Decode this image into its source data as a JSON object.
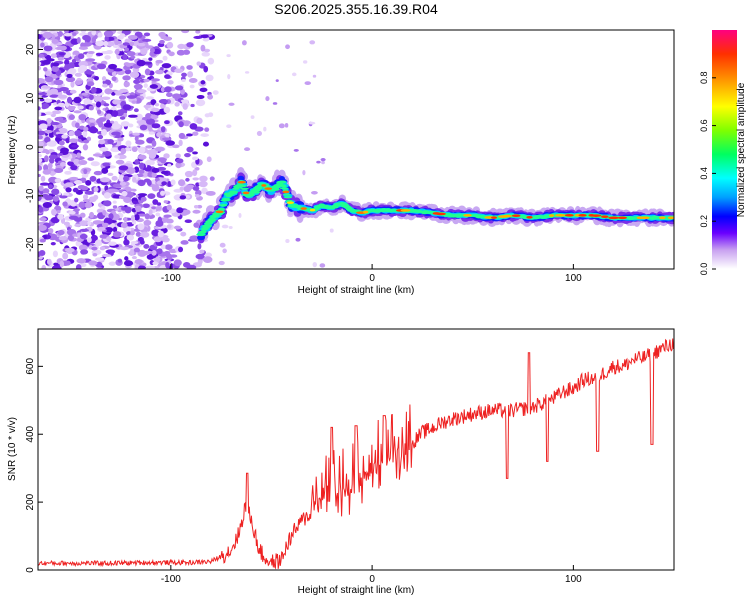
{
  "chart_data": [
    {
      "type": "heatmap",
      "title": "S206.2025.355.16.39.R04",
      "xlabel": "Height of straight line (km)",
      "ylabel": "Frequency (Hz)",
      "xlim": [
        -166,
        150
      ],
      "ylim": [
        -25,
        24
      ],
      "xticks": [
        -100,
        0,
        100
      ],
      "yticks": [
        -20,
        -10,
        0,
        10,
        20
      ],
      "colorbar": {
        "label": "Normalized spectral amplitude",
        "range": [
          0,
          1
        ],
        "ticks": [
          "0.0",
          "0.2",
          "0.4",
          "0.6",
          "0.8"
        ],
        "colors": [
          "#ffffff",
          "#c8a0f0",
          "#6a00ff",
          "#0000ff",
          "#00a0ff",
          "#00ffff",
          "#00ff60",
          "#80ff00",
          "#ffff00",
          "#ffa000",
          "#ff3000",
          "#ff0080"
        ]
      },
      "noise_region_x": [
        -166,
        -80
      ],
      "signal_track": {
        "x": [
          -85,
          -82,
          -78,
          -75,
          -72,
          -68,
          -65,
          -62,
          -58,
          -55,
          -50,
          -45,
          -40,
          -35,
          -30,
          -25,
          -20,
          -15,
          -10,
          -5,
          0,
          10,
          20,
          30,
          40,
          50,
          60,
          70,
          80,
          90,
          100,
          110,
          120,
          130,
          140,
          150
        ],
        "y": [
          -18,
          -16,
          -14,
          -13,
          -10,
          -9,
          -7,
          -10,
          -9,
          -7.5,
          -9,
          -7,
          -12,
          -12.5,
          -13,
          -12,
          -12.5,
          -11.5,
          -13,
          -13.5,
          -13,
          -13,
          -13,
          -13.5,
          -14,
          -14,
          -14.5,
          -14,
          -14.5,
          -14,
          -14,
          -14,
          -14.5,
          -14.5,
          -14.5,
          -14.5
        ]
      }
    },
    {
      "type": "line",
      "title": "",
      "xlabel": "Height of straight line (km)",
      "ylabel": "SNR (10 * v/v)",
      "xlim": [
        -166,
        150
      ],
      "ylim": [
        0,
        710
      ],
      "xticks": [
        -100,
        0,
        100
      ],
      "yticks": [
        0,
        200,
        400,
        600
      ],
      "color": "#ee2222",
      "x": [
        -166,
        -150,
        -130,
        -110,
        -90,
        -80,
        -75,
        -70,
        -66,
        -63,
        -60,
        -57,
        -54,
        -50,
        -45,
        -42,
        -38,
        -34,
        -30,
        -25,
        -20,
        -15,
        -10,
        -5,
        0,
        5,
        10,
        15,
        20,
        25,
        30,
        35,
        40,
        50,
        60,
        70,
        80,
        90,
        95,
        100,
        105,
        110,
        115,
        120,
        125,
        130,
        135,
        140,
        145,
        150
      ],
      "values": [
        20,
        20,
        20,
        22,
        22,
        25,
        40,
        60,
        110,
        190,
        150,
        75,
        38,
        22,
        30,
        80,
        120,
        150,
        170,
        195,
        215,
        225,
        245,
        265,
        285,
        315,
        330,
        345,
        375,
        405,
        418,
        435,
        445,
        460,
        470,
        470,
        480,
        505,
        525,
        535,
        560,
        565,
        580,
        600,
        600,
        620,
        625,
        640,
        655,
        670
      ],
      "spikes": [
        {
          "x": -62,
          "value": 285
        },
        {
          "x": -20,
          "value": 420
        },
        {
          "x": -8,
          "value": 425
        },
        {
          "x": 6,
          "value": 455
        },
        {
          "x": 67,
          "value": 270
        },
        {
          "x": 78,
          "value": 640
        },
        {
          "x": 87,
          "value": 320
        },
        {
          "x": 112,
          "value": 350
        },
        {
          "x": 139,
          "value": 370
        }
      ]
    }
  ]
}
